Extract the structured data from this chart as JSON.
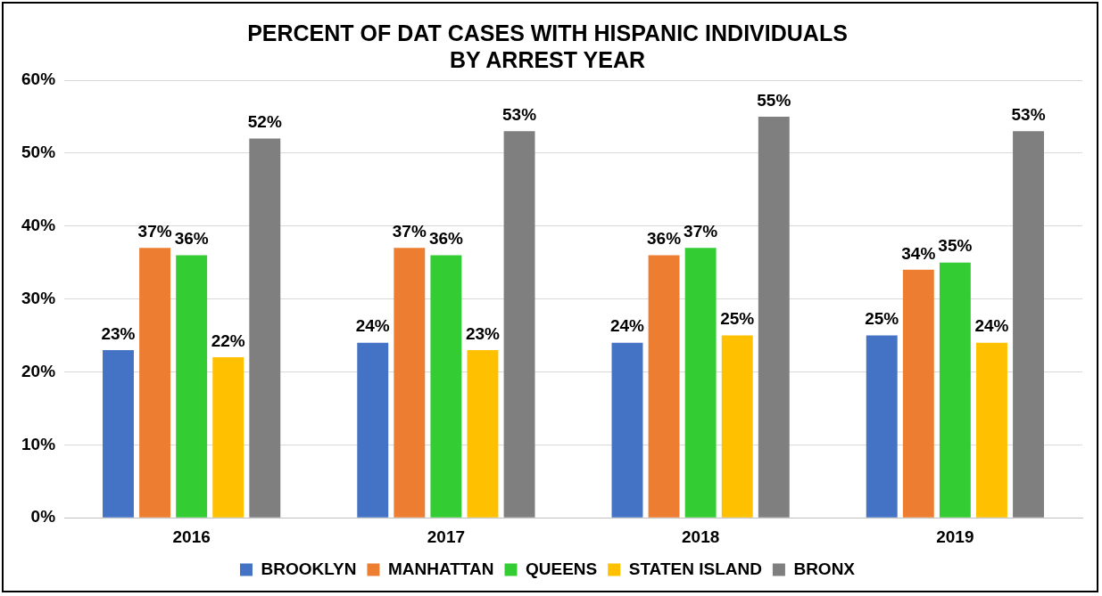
{
  "chart_data": {
    "type": "bar",
    "title": "PERCENT OF DAT CASES WITH HISPANIC INDIVIDUALS\nBY ARREST YEAR",
    "categories": [
      "2016",
      "2017",
      "2018",
      "2019"
    ],
    "series": [
      {
        "name": "BROOKLYN",
        "color": "#4472c4",
        "values": [
          23,
          24,
          24,
          25
        ],
        "value_labels": [
          "23%",
          "24%",
          "24%",
          "25%"
        ]
      },
      {
        "name": "MANHATTAN",
        "color": "#ed7d31",
        "values": [
          37,
          37,
          36,
          34
        ],
        "value_labels": [
          "37%",
          "37%",
          "36%",
          "34%"
        ]
      },
      {
        "name": "QUEENS",
        "color": "#33cc33",
        "values": [
          36,
          36,
          37,
          35
        ],
        "value_labels": [
          "36%",
          "36%",
          "37%",
          "35%"
        ]
      },
      {
        "name": "STATEN ISLAND",
        "color": "#ffc000",
        "values": [
          22,
          23,
          25,
          24
        ],
        "value_labels": [
          "22%",
          "23%",
          "25%",
          "24%"
        ]
      },
      {
        "name": "BRONX",
        "color": "#7f7f7f",
        "values": [
          52,
          53,
          55,
          53
        ],
        "value_labels": [
          "52%",
          "53%",
          "55%",
          "53%"
        ]
      }
    ],
    "ylim": [
      0,
      60
    ],
    "yticks": [
      {
        "value": 0,
        "label": "0%"
      },
      {
        "value": 10,
        "label": "10%"
      },
      {
        "value": 20,
        "label": "20%"
      },
      {
        "value": 30,
        "label": "30%"
      },
      {
        "value": 40,
        "label": "40%"
      },
      {
        "value": 50,
        "label": "50%"
      },
      {
        "value": 60,
        "label": "60%"
      }
    ],
    "grid": "y",
    "legend": "bottom"
  }
}
